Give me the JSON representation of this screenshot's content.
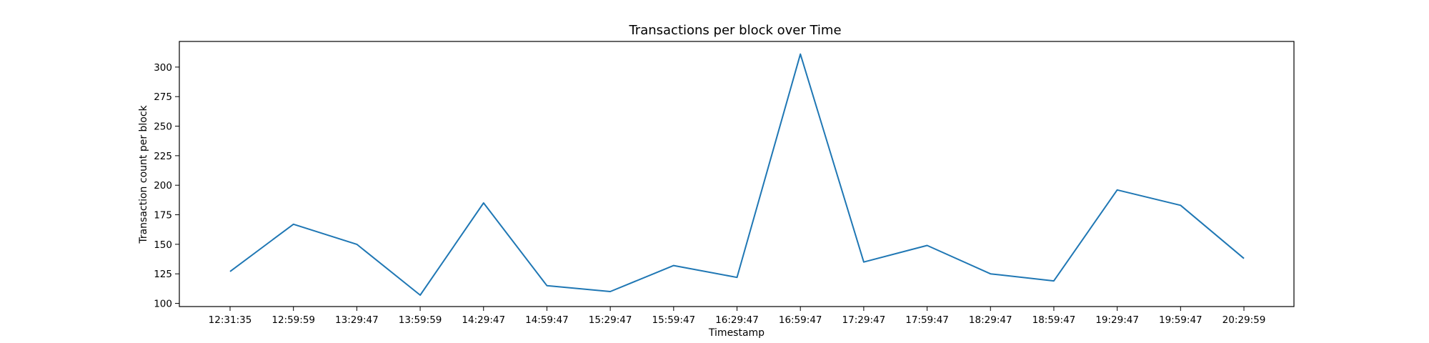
{
  "chart_data": {
    "type": "line",
    "title": "Transactions per block over Time",
    "xlabel": "Timestamp",
    "ylabel": "Transaction count per block",
    "categories": [
      "12:31:35",
      "12:59:59",
      "13:29:47",
      "13:59:59",
      "14:29:47",
      "14:59:47",
      "15:29:47",
      "15:59:47",
      "16:29:47",
      "16:59:47",
      "17:29:47",
      "17:59:47",
      "18:29:47",
      "18:59:47",
      "19:29:47",
      "19:59:47",
      "20:29:59"
    ],
    "values": [
      127,
      167,
      150,
      107,
      185,
      115,
      110,
      132,
      122,
      311,
      135,
      149,
      125,
      119,
      196,
      183,
      138
    ],
    "yticks": [
      100,
      125,
      150,
      175,
      200,
      225,
      250,
      275,
      300
    ],
    "ylim": [
      97.3,
      321.7
    ],
    "grid": false,
    "colors": {
      "line": "#1f77b4",
      "axis": "#000000"
    }
  }
}
